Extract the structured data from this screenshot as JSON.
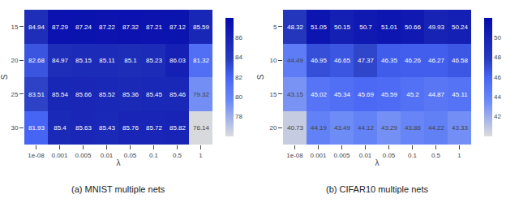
{
  "chart_data": [
    {
      "type": "heatmap",
      "title": "(a) MNIST multiple nets",
      "x_label": "λ",
      "y_label": "S",
      "x": [
        "1e-08",
        "0.001",
        "0.005",
        "0.01",
        "0.05",
        "0.1",
        "0.5",
        "1"
      ],
      "y": [
        "15",
        "20",
        "25",
        "30"
      ],
      "values": [
        [
          84.94,
          87.29,
          87.24,
          87.22,
          87.32,
          87.21,
          87.12,
          85.59
        ],
        [
          82.68,
          84.97,
          85.15,
          85.11,
          85.1,
          85.23,
          86.03,
          81.32
        ],
        [
          83.51,
          85.54,
          85.66,
          85.52,
          85.36,
          85.45,
          85.46,
          79.32
        ],
        [
          81.93,
          85.4,
          85.63,
          85.43,
          85.76,
          85.72,
          85.82,
          76.14
        ]
      ],
      "colorbar_range": [
        76,
        88
      ],
      "colorbar_ticks": [
        78,
        80,
        82,
        84,
        86
      ],
      "color": "Blues",
      "data_labels": true
    },
    {
      "type": "heatmap",
      "title": "(b) CIFAR10 multiple nets",
      "x_label": "λ",
      "y_label": "S",
      "x": [
        "1e-08",
        "0.001",
        "0.005",
        "0.01",
        "0.05",
        "0.1",
        "0.5",
        "1"
      ],
      "y": [
        "5",
        "10",
        "15",
        "20"
      ],
      "values": [
        [
          48.32,
          51.05,
          50.15,
          50.7,
          51.01,
          50.66,
          49.93,
          50.24
        ],
        [
          44.49,
          46.95,
          46.65,
          47.37,
          46.35,
          46.26,
          46.27,
          46.58
        ],
        [
          43.15,
          45.02,
          45.34,
          45.69,
          45.59,
          45.2,
          44.87,
          45.11
        ],
        [
          40.73,
          44.19,
          43.49,
          44.12,
          43.29,
          43.86,
          44.22,
          43.33
        ]
      ],
      "colorbar_range": [
        40,
        52
      ],
      "colorbar_ticks": [
        42,
        44,
        46,
        48,
        50
      ],
      "color": "Blues",
      "data_labels": true
    }
  ]
}
